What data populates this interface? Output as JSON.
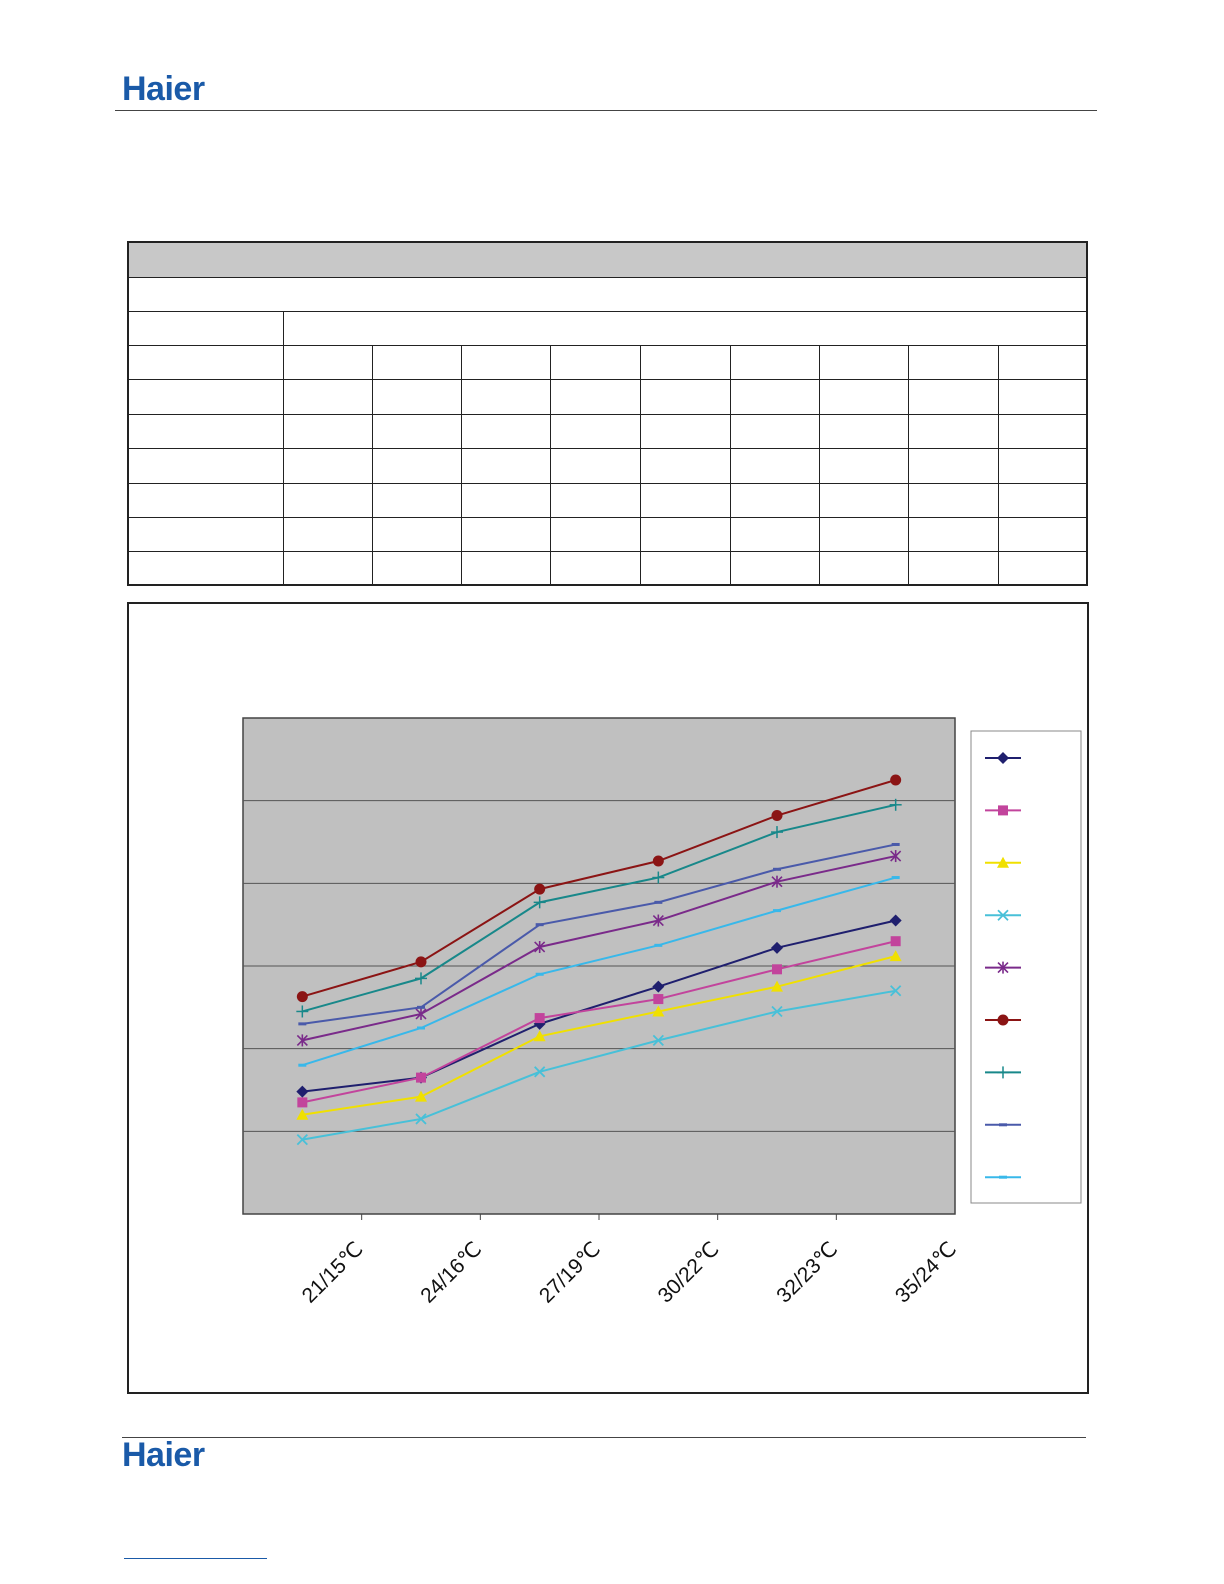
{
  "brand": {
    "header_logo": "Haier",
    "footer_logo": "Haier"
  },
  "colors": {
    "brand": "#1a5aa8",
    "plot_bg": "#c0c0c0"
  },
  "chart_data": {
    "type": "line",
    "title": "",
    "xlabel": "",
    "ylabel": "",
    "categories": [
      "21/15℃",
      "24/16℃",
      "27/19℃",
      "30/22℃",
      "32/23℃",
      "35/24℃"
    ],
    "ylim": [
      0,
      6
    ],
    "grid": true,
    "legend_position": "right",
    "series": [
      {
        "color": "#1f1f6e",
        "marker": "diamond",
        "values": [
          1.48,
          1.65,
          2.3,
          2.75,
          3.22,
          3.55
        ]
      },
      {
        "color": "#c2449c",
        "marker": "square",
        "values": [
          1.35,
          1.65,
          2.37,
          2.6,
          2.96,
          3.3
        ]
      },
      {
        "color": "#f0e000",
        "marker": "triangle",
        "values": [
          1.2,
          1.42,
          2.15,
          2.45,
          2.75,
          3.12
        ]
      },
      {
        "color": "#48c0d8",
        "marker": "x",
        "values": [
          0.9,
          1.15,
          1.72,
          2.1,
          2.45,
          2.7
        ]
      },
      {
        "color": "#7a2a8a",
        "marker": "star",
        "values": [
          2.1,
          2.42,
          3.23,
          3.55,
          4.02,
          4.33
        ]
      },
      {
        "color": "#8b1414",
        "marker": "circle",
        "values": [
          2.63,
          3.05,
          3.93,
          4.27,
          4.82,
          5.25
        ]
      },
      {
        "color": "#18888a",
        "marker": "plus",
        "values": [
          2.45,
          2.85,
          3.77,
          4.07,
          4.62,
          4.95
        ]
      },
      {
        "color": "#4a5aaa",
        "marker": "dash",
        "values": [
          2.3,
          2.5,
          3.5,
          3.77,
          4.17,
          4.47
        ]
      },
      {
        "color": "#38b8ea",
        "marker": "dash",
        "values": [
          1.8,
          2.25,
          2.9,
          3.25,
          3.67,
          4.07
        ]
      }
    ]
  }
}
